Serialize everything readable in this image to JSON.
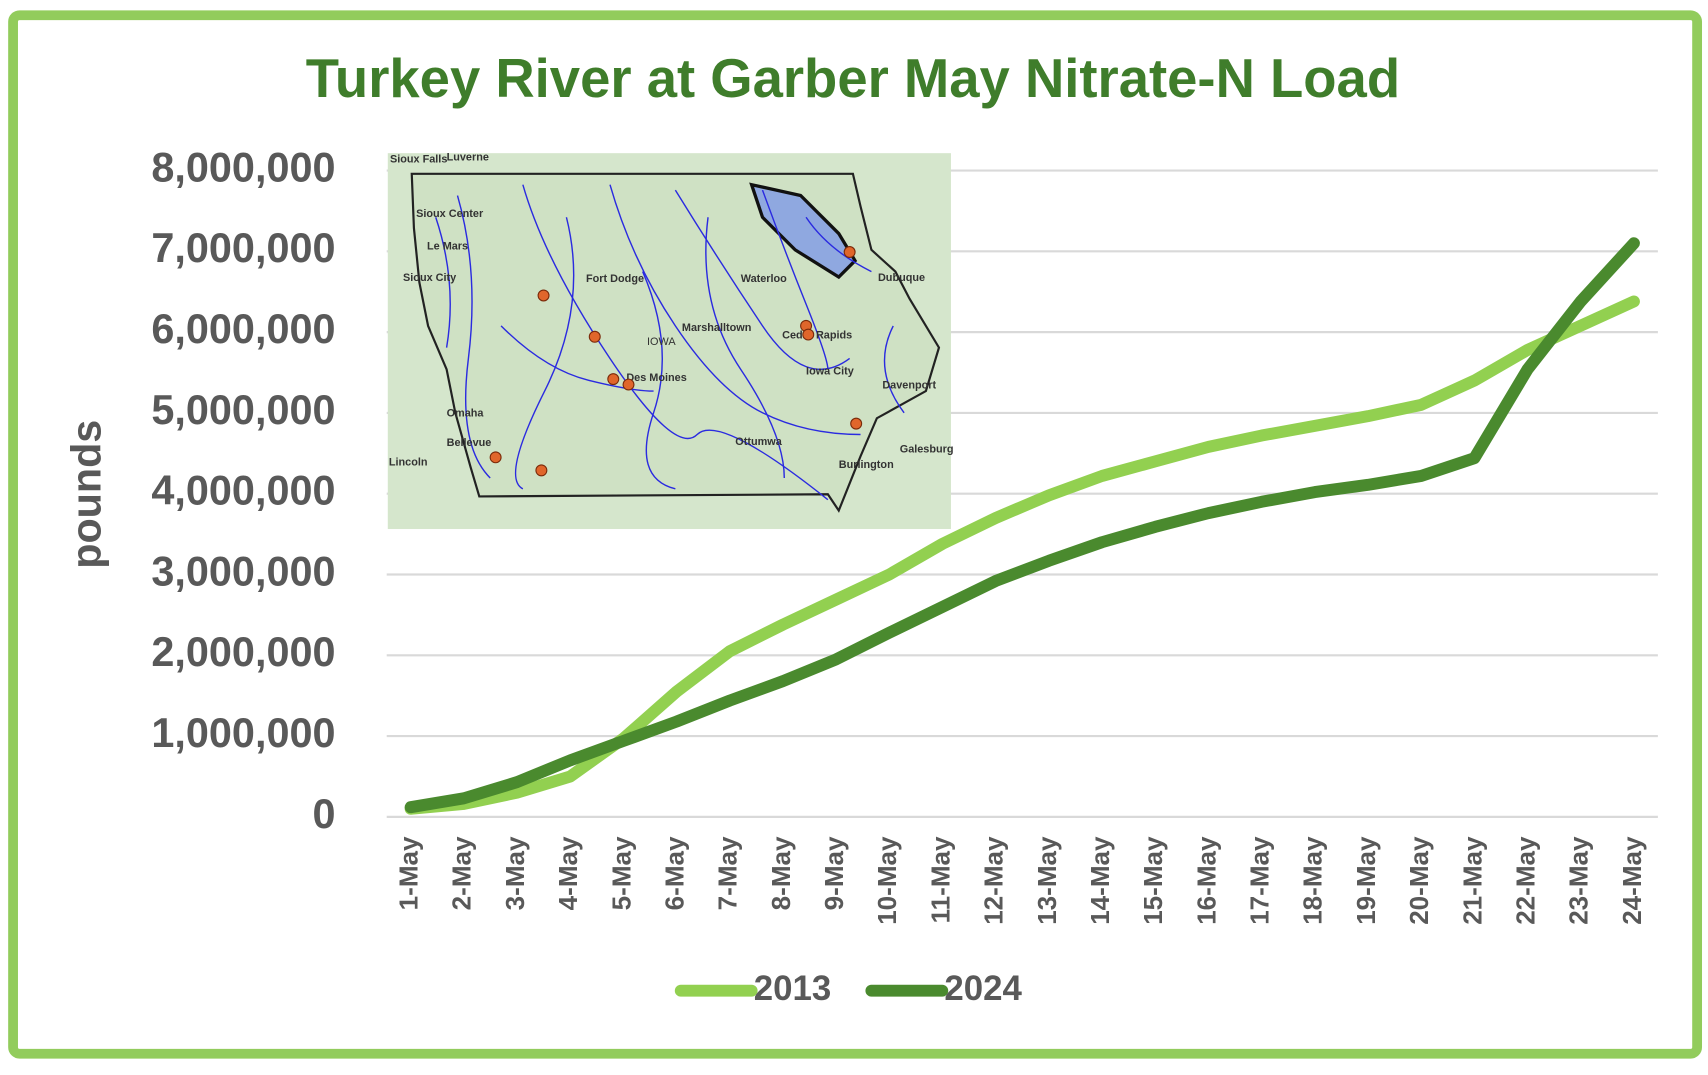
{
  "chart_data": {
    "type": "line",
    "title": "Turkey River at Garber May Nitrate-N Load",
    "y_label": "pounds",
    "categories": [
      "1-May",
      "2-May",
      "3-May",
      "4-May",
      "5-May",
      "6-May",
      "7-May",
      "8-May",
      "9-May",
      "10-May",
      "11-May",
      "12-May",
      "13-May",
      "14-May",
      "15-May",
      "16-May",
      "17-May",
      "18-May",
      "19-May",
      "20-May",
      "21-May",
      "22-May",
      "23-May",
      "24-May"
    ],
    "series": [
      {
        "name": "2013",
        "color": "#92d050",
        "values": [
          100000,
          160000,
          300000,
          500000,
          970000,
          1550000,
          2050000,
          2380000,
          2690000,
          3000000,
          3380000,
          3700000,
          3980000,
          4220000,
          4400000,
          4580000,
          4720000,
          4840000,
          4960000,
          5100000,
          5400000,
          5780000,
          6080000,
          6380000
        ]
      },
      {
        "name": "2024",
        "color": "#4a8a2e",
        "values": [
          120000,
          230000,
          430000,
          700000,
          940000,
          1180000,
          1440000,
          1680000,
          1950000,
          2280000,
          2600000,
          2920000,
          3170000,
          3400000,
          3590000,
          3760000,
          3900000,
          4020000,
          4110000,
          4220000,
          4440000,
          5540000,
          6380000,
          7100000
        ]
      }
    ],
    "ylim": [
      0,
      8000000
    ],
    "yticks": [
      0,
      {
        "value": 1000000,
        "label": "1,000,000"
      },
      {
        "value": 2000000,
        "label": "2,000,000"
      },
      {
        "value": 3000000,
        "label": "3,000,000"
      },
      {
        "value": 4000000,
        "label": "4,000,000"
      },
      {
        "value": 5000000,
        "label": "5,000,000"
      },
      {
        "value": 6000000,
        "label": "6,000,000"
      },
      {
        "value": 7000000,
        "label": "7,000,000"
      },
      {
        "value": 8000000,
        "label": "8,000,000"
      }
    ],
    "grid": true,
    "legend": "bottom",
    "inset_labels": [
      "Sioux Falls",
      "Luverne",
      "Sioux Center",
      "Le Mars",
      "Sioux City",
      "Fort Dodge",
      "Waterloo",
      "Dubuque",
      "Marshalltown",
      "IOWA",
      "Cedar Rapids",
      "Des Moines",
      "Iowa City",
      "Davenport",
      "Omaha",
      "Bellevue",
      "Lincoln",
      "Ottumwa",
      "Galesburg",
      "Burlington"
    ]
  }
}
